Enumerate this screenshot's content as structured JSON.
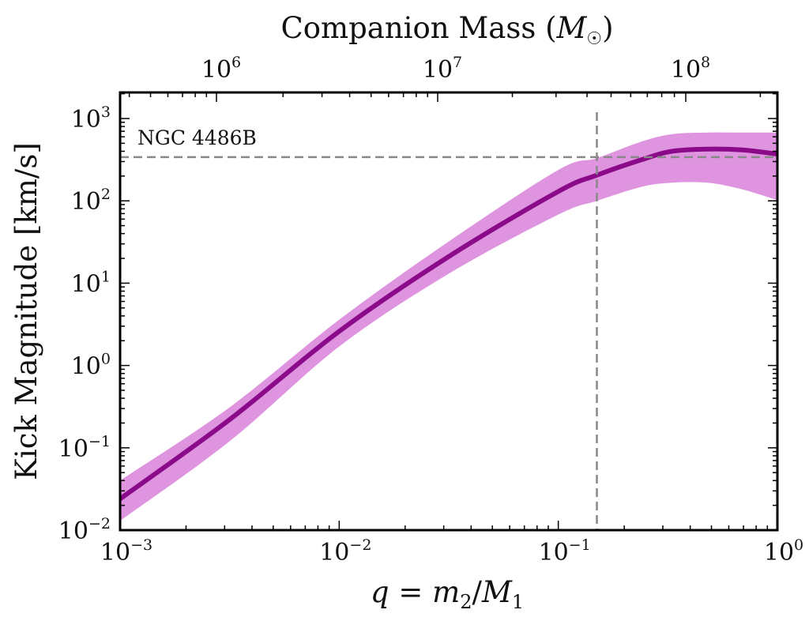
{
  "chart_data": {
    "type": "line",
    "title": "",
    "xlabel": "q = m₂/M₁",
    "ylabel": "Kick Magnitude [km/s]",
    "top_xlabel": "Companion Mass (M☉)",
    "xscale": "log",
    "yscale": "log",
    "xlim": [
      0.001,
      1.0
    ],
    "ylim": [
      0.01,
      2000
    ],
    "top_xlim_approx": [
      360000,
      234000000
    ],
    "grid": false,
    "legend": "none",
    "x_ticks": [
      {
        "base": "10",
        "exp": "−3",
        "value": 0.001
      },
      {
        "base": "10",
        "exp": "−2",
        "value": 0.01
      },
      {
        "base": "10",
        "exp": "−1",
        "value": 0.1
      },
      {
        "base": "10",
        "exp": "0",
        "value": 1
      }
    ],
    "y_ticks": [
      {
        "base": "10",
        "exp": "−2",
        "value": 0.01
      },
      {
        "base": "10",
        "exp": "−1",
        "value": 0.1
      },
      {
        "base": "10",
        "exp": "0",
        "value": 1
      },
      {
        "base": "10",
        "exp": "1",
        "value": 10
      },
      {
        "base": "10",
        "exp": "2",
        "value": 100
      },
      {
        "base": "10",
        "exp": "3",
        "value": 1000
      }
    ],
    "top_x_ticks": [
      {
        "base": "10",
        "exp": "6",
        "value": 1000000
      },
      {
        "base": "10",
        "exp": "7",
        "value": 10000000
      },
      {
        "base": "10",
        "exp": "8",
        "value": 100000000
      }
    ],
    "x": [
      0.001,
      0.00316,
      0.01,
      0.0316,
      0.1,
      0.15,
      0.24,
      0.33,
      0.48,
      0.69,
      1.0
    ],
    "series": [
      {
        "name": "median kick",
        "color": "#8a0a8a",
        "values": [
          0.024,
          0.22,
          2.6,
          21,
          130,
          205,
          316,
          400,
          425,
          415,
          370
        ]
      },
      {
        "name": "upper bound",
        "color": "#df94df",
        "values": [
          0.04,
          0.31,
          3.6,
          32,
          237,
          330,
          525,
          645,
          675,
          675,
          675
        ]
      },
      {
        "name": "lower bound",
        "color": "#df94df",
        "values": [
          0.013,
          0.12,
          1.7,
          13,
          68,
          100,
          148,
          166,
          166,
          138,
          102
        ]
      }
    ],
    "reference_lines": [
      {
        "orientation": "horizontal",
        "value": 340,
        "label": "NGC 4486B",
        "style": "dashed",
        "color": "#888888"
      },
      {
        "orientation": "vertical",
        "value": 0.15,
        "style": "dashed",
        "color": "#888888"
      }
    ],
    "annotations": [
      {
        "text": "NGC 4486B"
      }
    ]
  }
}
